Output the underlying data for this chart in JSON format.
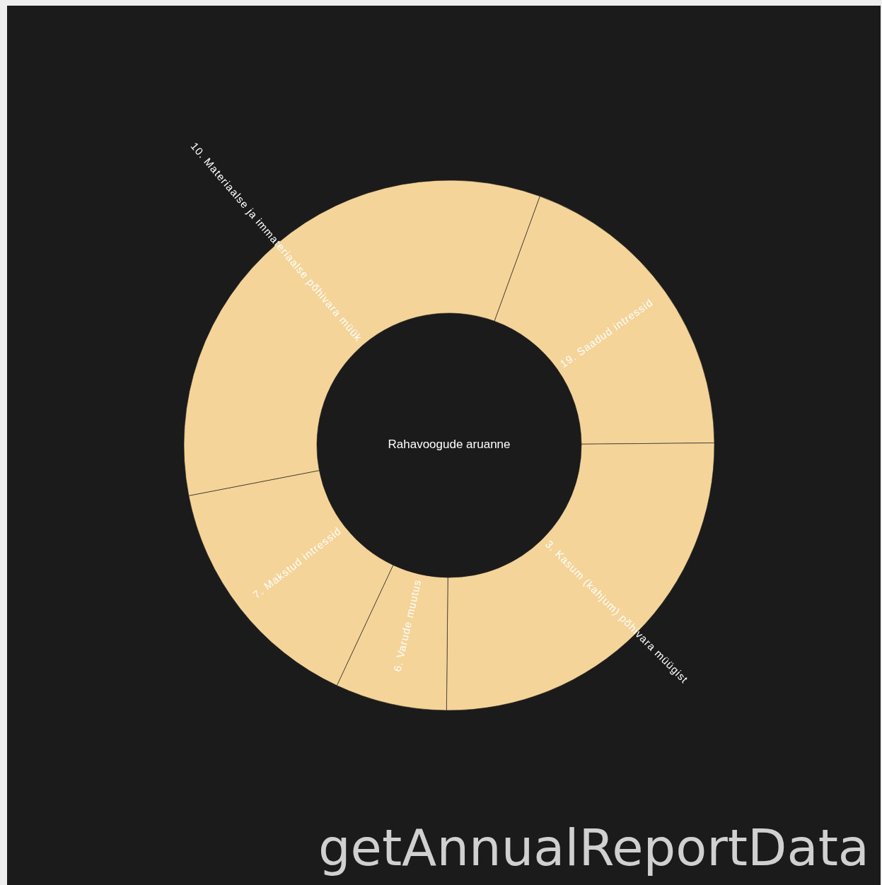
{
  "chart_data": {
    "type": "donut",
    "title": "Rahavoogude aruanne",
    "categories": [
      "19. Saadud intressid",
      "3. Kasum (kahjum) põhivara müügist",
      "6. Varude muutus",
      "7. Makstud intressid",
      "10. Materiaalse ja immateriaalse põhivara müük"
    ],
    "values": [
      19.3,
      25.3,
      6.8,
      15.0,
      33.6
    ],
    "colors": [
      "#f5d49a",
      "#f5d49a",
      "#f5d49a",
      "#f5d49a",
      "#f5d49a"
    ],
    "annotations": [
      "getAnnualReportData"
    ]
  }
}
